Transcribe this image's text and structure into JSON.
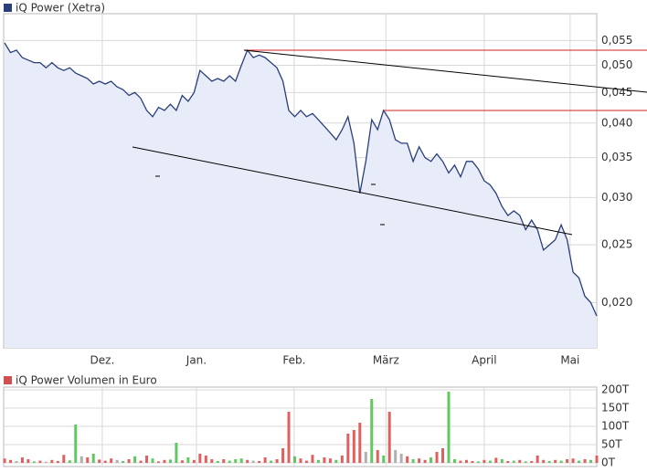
{
  "chart_data": [
    {
      "type": "line",
      "log_scale": true,
      "grid": true,
      "series": [
        {
          "name": "iQ Power (Xetra)",
          "color": "#2a3f7a",
          "fill": "#e8ecf8",
          "values": [
            0.0545,
            0.0525,
            0.053,
            0.0515,
            0.051,
            0.0505,
            0.0505,
            0.0495,
            0.0505,
            0.0495,
            0.049,
            0.0495,
            0.0485,
            0.048,
            0.0475,
            0.0465,
            0.047,
            0.0465,
            0.047,
            0.046,
            0.0455,
            0.0445,
            0.045,
            0.044,
            0.042,
            0.041,
            0.0425,
            0.042,
            0.043,
            0.042,
            0.0445,
            0.0435,
            0.045,
            0.049,
            0.048,
            0.047,
            0.0475,
            0.047,
            0.048,
            0.047,
            0.05,
            0.053,
            0.0515,
            0.052,
            0.0515,
            0.0505,
            0.0495,
            0.047,
            0.042,
            0.041,
            0.042,
            0.041,
            0.0415,
            0.0405,
            0.0395,
            0.0385,
            0.0375,
            0.039,
            0.041,
            0.037,
            0.0305,
            0.0345,
            0.0405,
            0.039,
            0.042,
            0.0405,
            0.0375,
            0.037,
            0.037,
            0.0345,
            0.0365,
            0.035,
            0.0345,
            0.0355,
            0.0345,
            0.033,
            0.034,
            0.0325,
            0.0345,
            0.0345,
            0.0335,
            0.032,
            0.0315,
            0.0305,
            0.029,
            0.028,
            0.0285,
            0.028,
            0.0265,
            0.0275,
            0.0265,
            0.0245,
            0.025,
            0.0255,
            0.027,
            0.0255,
            0.0225,
            0.022,
            0.0205,
            0.02,
            0.019
          ]
        }
      ],
      "xlim": [
        0,
        100
      ],
      "xticks": [
        {
          "value": 16.5,
          "label": "Dez."
        },
        {
          "value": 32.4,
          "label": "Jan."
        },
        {
          "value": 48.9,
          "label": "Feb."
        },
        {
          "value": 64.4,
          "label": "März"
        },
        {
          "value": 81,
          "label": "April"
        },
        {
          "value": 95.5,
          "label": "Mai"
        }
      ],
      "ylim": [
        0.0168,
        0.061
      ],
      "yticks": [
        {
          "value": 0.02,
          "label": "0,020"
        },
        {
          "value": 0.025,
          "label": "0,025"
        },
        {
          "value": 0.03,
          "label": "0,030"
        },
        {
          "value": 0.035,
          "label": "0,035"
        },
        {
          "value": 0.04,
          "label": "0,040"
        },
        {
          "value": 0.045,
          "label": "0,045"
        },
        {
          "value": 0.05,
          "label": "0,050"
        },
        {
          "value": 0.055,
          "label": "0,055"
        }
      ]
    },
    {
      "type": "bar",
      "grid": true,
      "series": [
        {
          "name": "iQ Power Volumen in Euro",
          "color": "#d05050",
          "values": [
            12,
            8,
            5,
            15,
            10,
            4,
            6,
            3,
            8,
            5,
            22,
            7,
            105,
            18,
            15,
            25,
            9,
            6,
            12,
            8,
            5,
            10,
            18,
            6,
            20,
            12,
            4,
            8,
            9,
            55,
            7,
            15,
            8,
            25,
            20,
            10,
            5,
            10,
            6,
            10,
            12,
            8,
            6,
            5,
            15,
            6,
            10,
            40,
            140,
            18,
            12,
            6,
            22,
            8,
            15,
            12,
            8,
            20,
            80,
            90,
            110,
            30,
            175,
            35,
            20,
            140,
            35,
            25,
            18,
            10,
            12,
            8,
            15,
            30,
            40,
            195,
            10,
            6,
            8,
            5,
            4,
            8,
            6,
            14,
            10,
            5,
            6,
            8,
            4,
            5,
            20,
            8,
            5,
            8,
            6,
            10,
            12,
            6,
            10,
            8,
            20
          ],
          "colors": [
            "#e06060",
            "#e06060",
            "#b0b0b0",
            "#e06060",
            "#e06060",
            "#60c860",
            "#e06060",
            "#b0b0b0",
            "#e06060",
            "#e06060",
            "#e06060",
            "#60c860",
            "#60c860",
            "#b0b0b0",
            "#e06060",
            "#60c860",
            "#e06060",
            "#e06060",
            "#e06060",
            "#b0b0b0",
            "#60c860",
            "#e06060",
            "#60c860",
            "#e06060",
            "#e06060",
            "#60c860",
            "#e06060",
            "#e06060",
            "#60c860",
            "#60c860",
            "#e06060",
            "#60c860",
            "#e06060",
            "#e06060",
            "#e06060",
            "#e06060",
            "#60c860",
            "#e06060",
            "#60c860",
            "#60c860",
            "#60c860",
            "#e06060",
            "#b0b0b0",
            "#e06060",
            "#e06060",
            "#60c860",
            "#e06060",
            "#e06060",
            "#e06060",
            "#60c860",
            "#e06060",
            "#e06060",
            "#e06060",
            "#60c860",
            "#e06060",
            "#e06060",
            "#60c860",
            "#e06060",
            "#e06060",
            "#e06060",
            "#e06060",
            "#b0b0b0",
            "#60c860",
            "#e06060",
            "#60c860",
            "#e06060",
            "#b0b0b0",
            "#b0b0b0",
            "#e06060",
            "#60c860",
            "#e06060",
            "#e06060",
            "#60c860",
            "#e06060",
            "#e06060",
            "#60c860",
            "#60c860",
            "#e06060",
            "#e06060",
            "#e06060",
            "#60c860",
            "#e06060",
            "#60c860",
            "#e06060",
            "#60c860",
            "#e06060",
            "#60c860",
            "#e06060",
            "#60c860",
            "#e06060",
            "#e06060",
            "#e06060",
            "#60c860",
            "#e06060",
            "#60c860",
            "#e06060",
            "#e06060",
            "#60c860",
            "#e06060",
            "#60c860",
            "#e06060"
          ]
        }
      ],
      "ylim": [
        0,
        200
      ],
      "yticks": [
        {
          "value": 0,
          "label": "0T"
        },
        {
          "value": 50,
          "label": "50T"
        },
        {
          "value": 100,
          "label": "100T"
        },
        {
          "value": 150,
          "label": "150T"
        },
        {
          "value": 200,
          "label": "200T"
        }
      ]
    }
  ]
}
